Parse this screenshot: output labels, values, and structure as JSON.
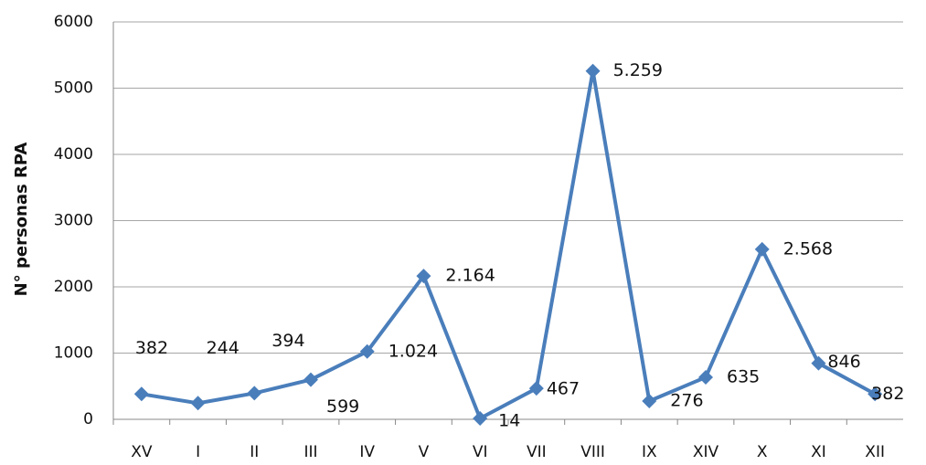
{
  "chart_data": {
    "type": "line",
    "ylabel": "N° personas RPA",
    "categories": [
      "XV",
      "I",
      "II",
      "III",
      "IV",
      "V",
      "VI",
      "VII",
      "VIII",
      "IX",
      "XIV",
      "X",
      "XI",
      "XII"
    ],
    "series": [
      {
        "name": "N° personas RPA",
        "color": "#4a7ebb",
        "values": [
          382,
          244,
          394,
          599,
          1024,
          2164,
          14,
          467,
          5259,
          276,
          635,
          2568,
          846,
          382
        ],
        "value_labels": [
          "382",
          "244",
          "394",
          "599",
          "1.024",
          "2.164",
          "14",
          "467",
          "5.259",
          "276",
          "635",
          "2.568",
          "846",
          "382"
        ]
      }
    ],
    "ylim": [
      0,
      6000
    ],
    "yticks": [
      0,
      1000,
      2000,
      3000,
      4000,
      5000,
      6000
    ],
    "grid": true
  }
}
